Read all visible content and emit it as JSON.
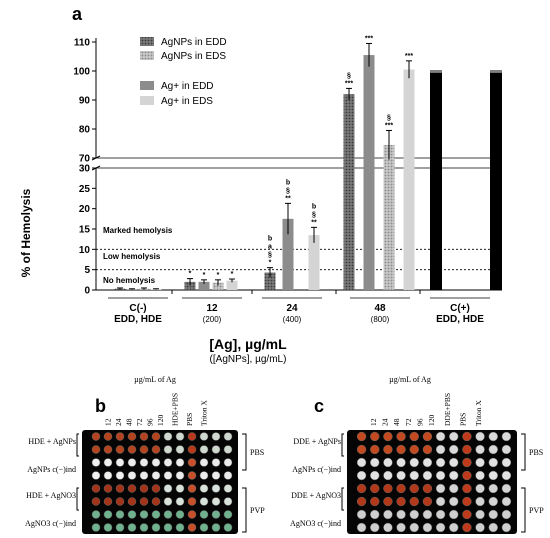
{
  "panels": {
    "a": {
      "letter": "a"
    },
    "b": {
      "letter": "b",
      "header": "µg/mL of Ag",
      "column_labels": [
        "12",
        "24",
        "48",
        "72",
        "96",
        "120",
        "HDE+PBS",
        "PBS",
        "Triton X"
      ],
      "row_labels": [
        "HDE + AgNPs",
        "AgNPs c(−)ind",
        "HDE + AgNO3",
        "AgNO3 c(−)ind"
      ],
      "bracket_labels": [
        "PBS",
        "PVP"
      ]
    },
    "c": {
      "letter": "c",
      "header": "µg/mL of Ag",
      "column_labels": [
        "12",
        "24",
        "48",
        "72",
        "96",
        "120",
        "DDE+PBS",
        "PBS",
        "Triton X"
      ],
      "row_labels": [
        "DDE + AgNPs",
        "AgNPs c(−)ind",
        "DDE + AgNO3",
        "AgNO3 c(−)ind"
      ],
      "bracket_labels": [
        "PBS",
        "PVP"
      ]
    }
  },
  "chart_data": {
    "type": "bar",
    "ylabel": "% of Hemolysis",
    "xlabel": "[Ag], µg/mL",
    "xlabel_sub": "([AgNPs], µg/mL)",
    "y_axis_break": {
      "lower": [
        0,
        30
      ],
      "upper": [
        70,
        110
      ]
    },
    "y_ticks_lower": [
      "0",
      "5",
      "10",
      "15",
      "20",
      "25",
      "30"
    ],
    "y_ticks_upper": [
      "70",
      "80",
      "90",
      "100",
      "110"
    ],
    "groups": [
      {
        "label": "C(-)",
        "sublabel": "EDD, HDE"
      },
      {
        "label": "12",
        "sublabel": "(200)"
      },
      {
        "label": "24",
        "sublabel": "(400)"
      },
      {
        "label": "48",
        "sublabel": "(800)"
      },
      {
        "label": "C(+)",
        "sublabel": "EDD, HDE"
      }
    ],
    "series": [
      {
        "name": "AgNPs in EDD",
        "color": "#5a5a5a",
        "pattern": "dense-dots",
        "values": [
          0.3,
          2.0,
          4.3,
          92.0,
          null
        ],
        "errors": [
          0.2,
          0.8,
          1.2,
          2.0,
          null
        ],
        "annotations": [
          "",
          "*",
          "b\na\n§\n*",
          "§\n***",
          ""
        ]
      },
      {
        "name": "AgNPs in EDS",
        "color": "#9a9a9a",
        "pattern": "light-dots",
        "values": [
          0.3,
          1.8,
          null,
          74.5,
          null
        ],
        "errors": [
          0.2,
          0.7,
          null,
          5.0,
          null
        ],
        "annotations": [
          "",
          "*",
          "a\n§",
          "§\n***",
          ""
        ]
      },
      {
        "name": "Ag+ in EDD",
        "color": "#8c8c8c",
        "pattern": "solid",
        "values": [
          0.2,
          2.0,
          17.5,
          105.5,
          null
        ],
        "errors": [
          0.1,
          0.5,
          3.8,
          4.0,
          null
        ],
        "annotations": [
          "",
          "*",
          "b\n§\n**",
          "***",
          ""
        ]
      },
      {
        "name": "Ag+ in EDS",
        "color": "#d4d4d4",
        "pattern": "solid",
        "values": [
          0.2,
          2.3,
          13.5,
          100.5,
          null
        ],
        "errors": [
          0.1,
          0.4,
          1.9,
          3.0,
          null
        ],
        "annotations": [
          "",
          "*",
          "b\n§\n**",
          "***",
          ""
        ]
      },
      {
        "name": "C(+)",
        "color": "#000000",
        "pattern": "solid",
        "values": [
          null,
          null,
          null,
          null,
          99.5
        ],
        "errors": [
          null,
          null,
          null,
          null,
          0.5
        ],
        "annotations": [
          "",
          "",
          "",
          "",
          ""
        ]
      }
    ],
    "thresholds": [
      {
        "value": 10,
        "label": "Marked hemolysis"
      },
      {
        "value": 5,
        "label": "Low hemolysis"
      },
      {
        "value": 0,
        "label": "No hemolysis"
      }
    ]
  }
}
